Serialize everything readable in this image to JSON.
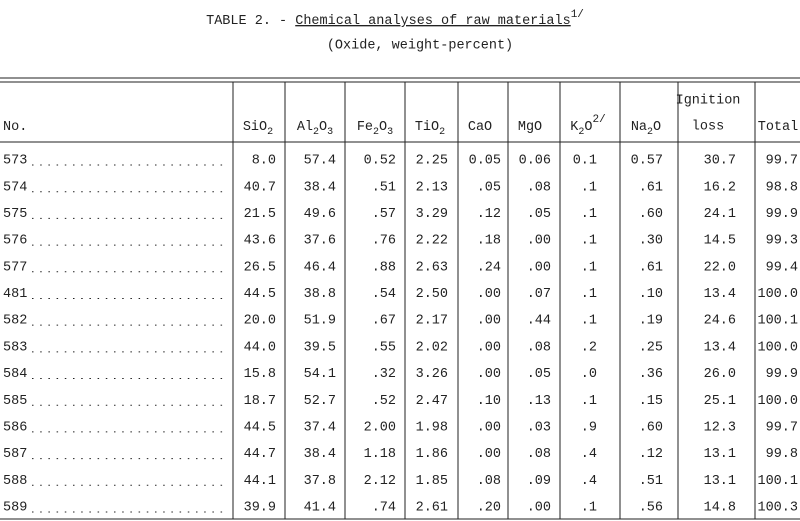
{
  "title": {
    "prefix": "TABLE 2. - ",
    "main": "Chemical analyses of raw materials",
    "note": "1/"
  },
  "subtitle": "(Oxide, weight-percent)",
  "table": {
    "header": [
      [
        "No."
      ],
      [
        "SiO",
        {
          "sub": "2"
        }
      ],
      [
        "Al",
        {
          "sub": "2"
        },
        "O",
        {
          "sub": "3"
        }
      ],
      [
        "Fe",
        {
          "sub": "2"
        },
        "O",
        {
          "sub": "3"
        }
      ],
      [
        "TiO",
        {
          "sub": "2"
        }
      ],
      [
        "CaO"
      ],
      [
        "MgO"
      ],
      [
        "K",
        {
          "sub": "2"
        },
        "O",
        {
          "sup": "2/"
        }
      ],
      [
        "Na",
        {
          "sub": "2"
        },
        "O"
      ],
      [
        {
          "line": "Ignition"
        },
        {
          "line": "loss"
        }
      ],
      [
        "Total"
      ]
    ],
    "rows": [
      [
        "573",
        "8.0",
        "57.4",
        "0.52",
        "2.25",
        "0.05",
        "0.06",
        "0.1",
        "0.57",
        "30.7",
        "99.7"
      ],
      [
        "574",
        "40.7",
        "38.4",
        ".51",
        "2.13",
        ".05",
        ".08",
        ".1",
        ".61",
        "16.2",
        "98.8"
      ],
      [
        "575",
        "21.5",
        "49.6",
        ".57",
        "3.29",
        ".12",
        ".05",
        ".1",
        ".60",
        "24.1",
        "99.9"
      ],
      [
        "576",
        "43.6",
        "37.6",
        ".76",
        "2.22",
        ".18",
        ".00",
        ".1",
        ".30",
        "14.5",
        "99.3"
      ],
      [
        "577",
        "26.5",
        "46.4",
        ".88",
        "2.63",
        ".24",
        ".00",
        ".1",
        ".61",
        "22.0",
        "99.4"
      ],
      [
        "481",
        "44.5",
        "38.8",
        ".54",
        "2.50",
        ".00",
        ".07",
        ".1",
        ".10",
        "13.4",
        "100.0"
      ],
      [
        "582",
        "20.0",
        "51.9",
        ".67",
        "2.17",
        ".00",
        ".44",
        ".1",
        ".19",
        "24.6",
        "100.1"
      ],
      [
        "583",
        "44.0",
        "39.5",
        ".55",
        "2.02",
        ".00",
        ".08",
        ".2",
        ".25",
        "13.4",
        "100.0"
      ],
      [
        "584",
        "15.8",
        "54.1",
        ".32",
        "3.26",
        ".00",
        ".05",
        ".0",
        ".36",
        "26.0",
        "99.9"
      ],
      [
        "585",
        "18.7",
        "52.7",
        ".52",
        "2.47",
        ".10",
        ".13",
        ".1",
        ".15",
        "25.1",
        "100.0"
      ],
      [
        "586",
        "44.5",
        "37.4",
        "2.00",
        "1.98",
        ".00",
        ".03",
        ".9",
        ".60",
        "12.3",
        "99.7"
      ],
      [
        "587",
        "44.7",
        "38.4",
        "1.18",
        "1.86",
        ".00",
        ".08",
        ".4",
        ".12",
        "13.1",
        "99.8"
      ],
      [
        "588",
        "44.1",
        "37.8",
        "2.12",
        "1.85",
        ".08",
        ".09",
        ".4",
        ".51",
        "13.1",
        "100.1"
      ],
      [
        "589",
        "39.9",
        "41.4",
        ".74",
        "2.61",
        ".20",
        ".00",
        ".1",
        ".56",
        "14.8",
        "100.3"
      ]
    ]
  }
}
